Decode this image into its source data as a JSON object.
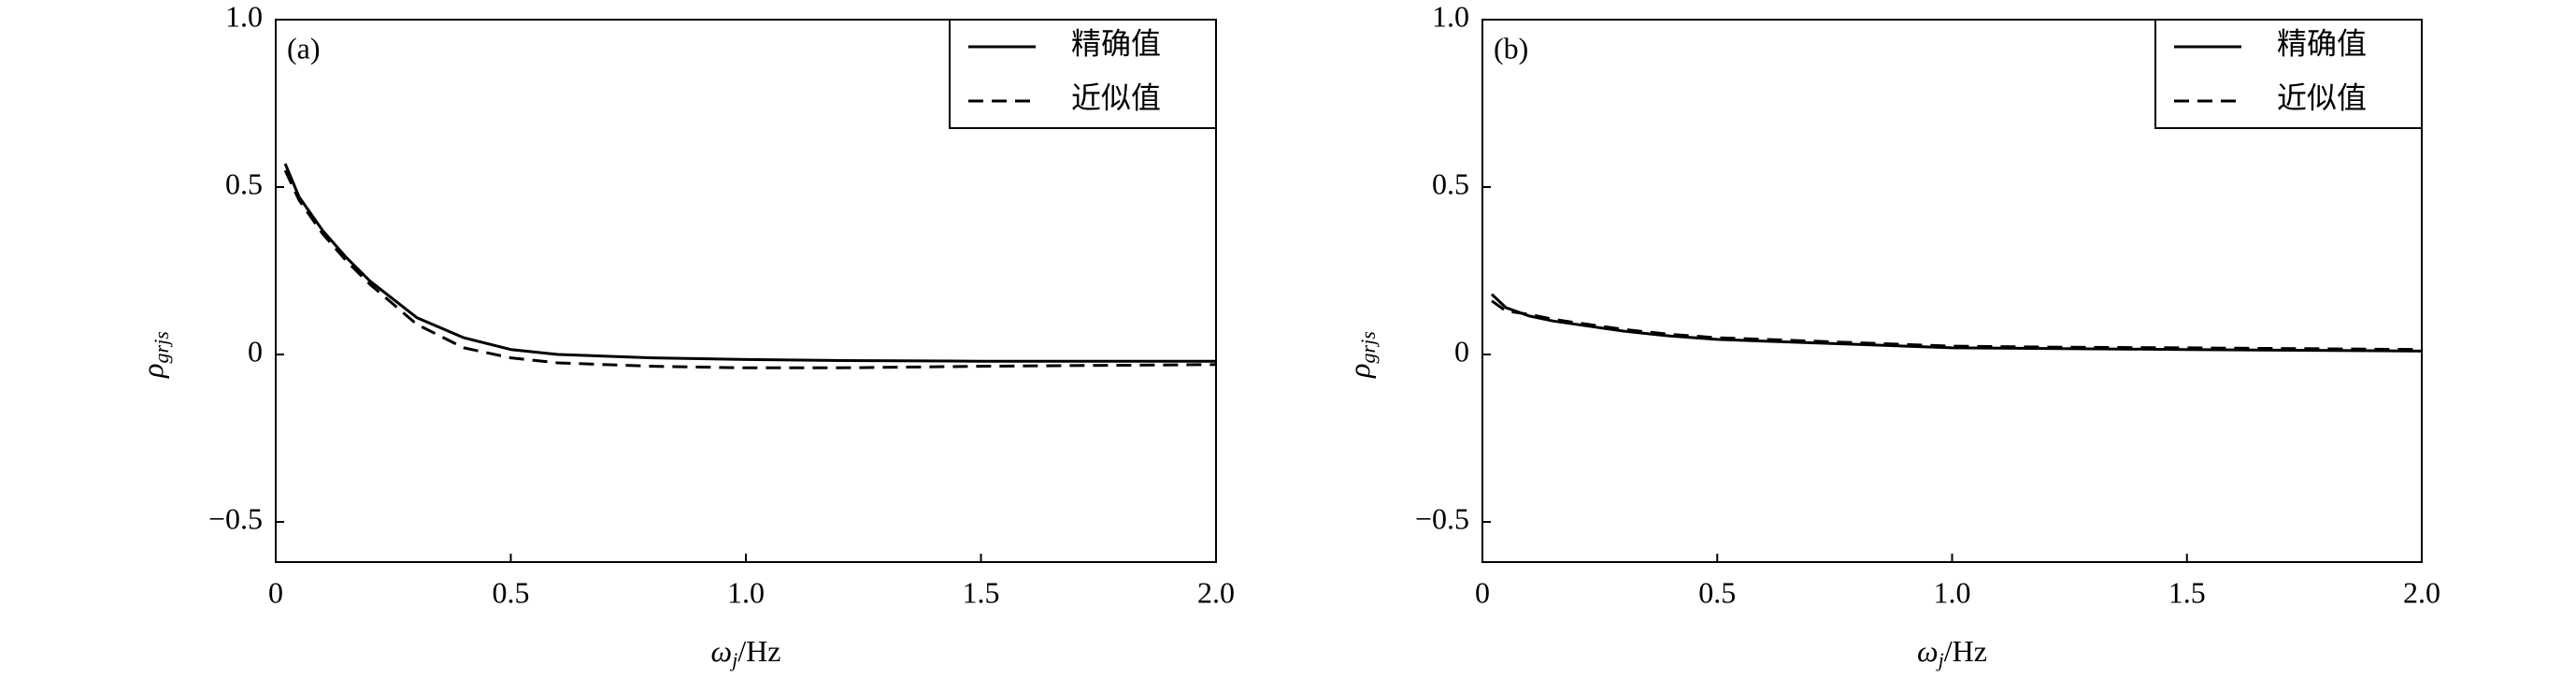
{
  "chart_data": [
    {
      "type": "line",
      "panel_label": "(a)",
      "xlabel": {
        "main": "ω",
        "sub": "j",
        "rest": "/Hz"
      },
      "ylabel": {
        "main": "ρ",
        "sub": "grjs"
      },
      "x": [
        0.02,
        0.05,
        0.1,
        0.15,
        0.2,
        0.3,
        0.4,
        0.5,
        0.6,
        0.8,
        1.0,
        1.2,
        1.5,
        2.0
      ],
      "series": [
        {
          "name": "精确值",
          "color": "#000000",
          "dash": "solid",
          "values": [
            0.57,
            0.47,
            0.37,
            0.29,
            0.22,
            0.11,
            0.05,
            0.015,
            0.0,
            -0.01,
            -0.015,
            -0.018,
            -0.02,
            -0.02
          ]
        },
        {
          "name": "近似值",
          "color": "#000000",
          "dash": "dashed",
          "values": [
            0.55,
            0.46,
            0.36,
            0.28,
            0.21,
            0.09,
            0.02,
            -0.01,
            -0.025,
            -0.035,
            -0.04,
            -0.04,
            -0.035,
            -0.03
          ]
        }
      ],
      "xlim": [
        0,
        2
      ],
      "xticks": [
        0,
        0.5,
        {
          "value": 1,
          "label": "1.0"
        },
        1.5,
        {
          "value": 2,
          "label": "2.0"
        }
      ],
      "ylim": [
        -0.62,
        1
      ],
      "yticks": [
        {
          "value": -0.5,
          "label": "−0.5"
        },
        0,
        0.5,
        {
          "value": 1,
          "label": "1.0"
        }
      ],
      "legend": "upper right",
      "grid": false
    },
    {
      "type": "line",
      "panel_label": "(b)",
      "xlabel": {
        "main": "ω",
        "sub": "j",
        "rest": "/Hz"
      },
      "ylabel": {
        "main": "ρ",
        "sub": "grjs"
      },
      "x": [
        0.02,
        0.05,
        0.1,
        0.15,
        0.2,
        0.3,
        0.4,
        0.5,
        0.6,
        0.8,
        1.0,
        1.2,
        1.5,
        2.0
      ],
      "series": [
        {
          "name": "精确值",
          "color": "#000000",
          "dash": "solid",
          "values": [
            0.18,
            0.14,
            0.115,
            0.1,
            0.09,
            0.07,
            0.055,
            0.045,
            0.04,
            0.03,
            0.02,
            0.018,
            0.015,
            0.01
          ]
        },
        {
          "name": "近似值",
          "color": "#000000",
          "dash": "dashed",
          "values": [
            0.16,
            0.13,
            0.12,
            0.105,
            0.095,
            0.075,
            0.06,
            0.05,
            0.045,
            0.035,
            0.025,
            0.022,
            0.02,
            0.015
          ]
        }
      ],
      "xlim": [
        0,
        2
      ],
      "xticks": [
        0,
        0.5,
        {
          "value": 1,
          "label": "1.0"
        },
        1.5,
        {
          "value": 2,
          "label": "2.0"
        }
      ],
      "ylim": [
        -0.62,
        1
      ],
      "yticks": [
        {
          "value": -0.5,
          "label": "−0.5"
        },
        0,
        0.5,
        {
          "value": 1,
          "label": "1.0"
        }
      ],
      "legend": "upper right",
      "grid": false
    }
  ]
}
